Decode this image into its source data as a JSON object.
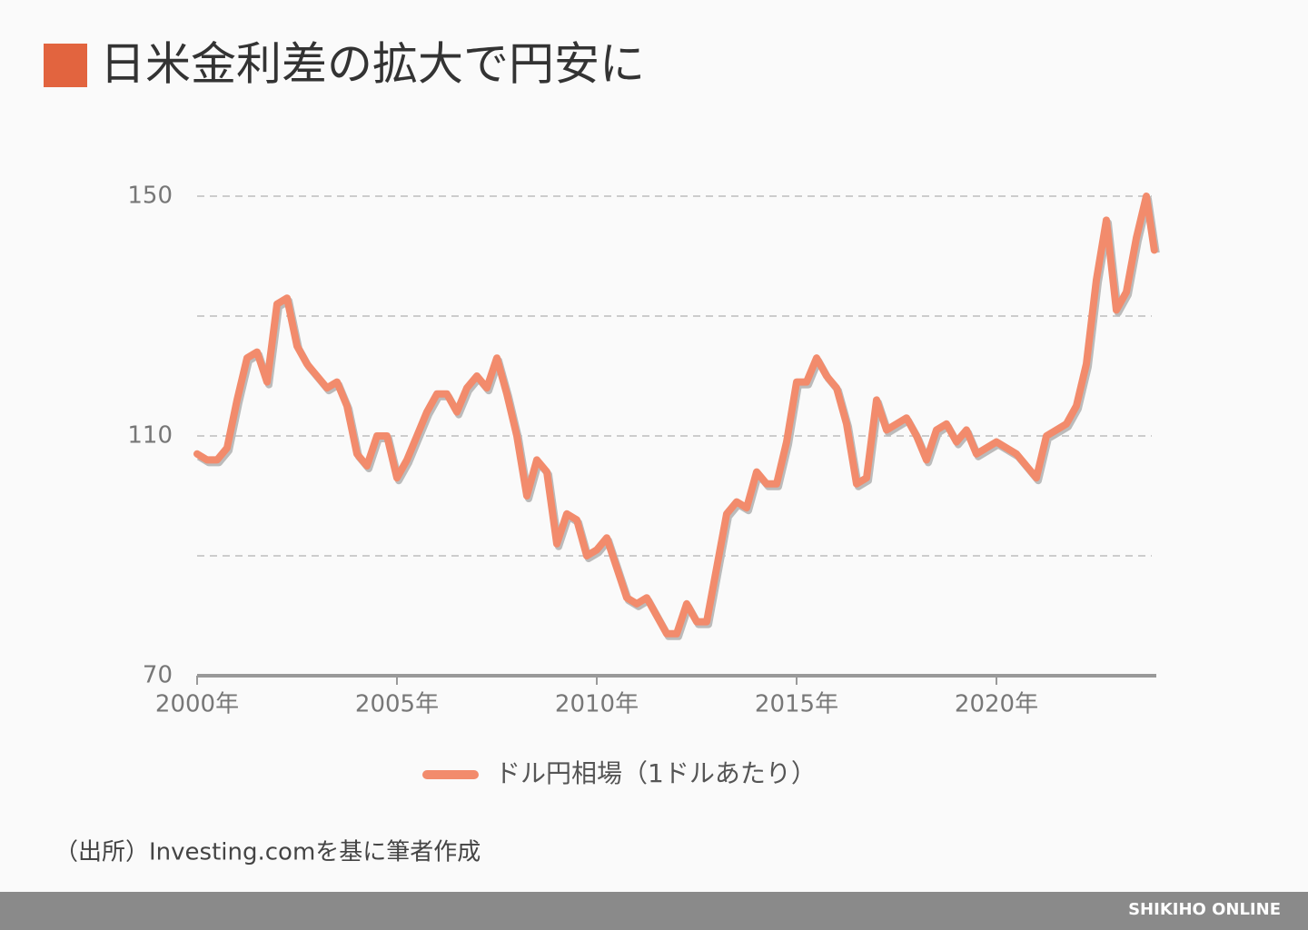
{
  "chart_data": {
    "type": "line",
    "title": "日米金利差の拡大で円安に",
    "source": "（出所）Investing.comを基に筆者作成",
    "brand": "SHIKIHO ONLINE",
    "x": [
      2000,
      2000.25,
      2000.5,
      2000.75,
      2001,
      2001.25,
      2001.5,
      2001.75,
      2002,
      2002.25,
      2002.5,
      2002.75,
      2003,
      2003.25,
      2003.5,
      2003.75,
      2004,
      2004.25,
      2004.5,
      2004.75,
      2005,
      2005.25,
      2005.5,
      2005.75,
      2006,
      2006.25,
      2006.5,
      2006.75,
      2007,
      2007.25,
      2007.5,
      2007.75,
      2008,
      2008.25,
      2008.5,
      2008.75,
      2009,
      2009.25,
      2009.5,
      2009.75,
      2010,
      2010.25,
      2010.5,
      2010.75,
      2011,
      2011.25,
      2011.5,
      2011.75,
      2012,
      2012.25,
      2012.5,
      2012.75,
      2013,
      2013.25,
      2013.5,
      2013.75,
      2014,
      2014.25,
      2014.5,
      2014.75,
      2015,
      2015.25,
      2015.5,
      2015.75,
      2016,
      2016.25,
      2016.5,
      2016.75,
      2017,
      2017.25,
      2017.5,
      2017.75,
      2018,
      2018.25,
      2018.5,
      2018.75,
      2019,
      2019.25,
      2019.5,
      2019.75,
      2020,
      2020.25,
      2020.5,
      2020.75,
      2021,
      2021.25,
      2021.5,
      2021.75,
      2022,
      2022.25,
      2022.5,
      2022.75,
      2023,
      2023.25,
      2023.5,
      2023.75,
      2023.95
    ],
    "series": [
      {
        "name": "ドル円相場（1ドルあたり）",
        "color": "#f28b6c",
        "values": [
          107,
          106,
          106,
          108,
          116,
          123,
          124,
          119,
          132,
          133,
          125,
          122,
          120,
          118,
          119,
          115,
          107,
          105,
          110,
          110,
          103,
          106,
          110,
          114,
          117,
          117,
          114,
          118,
          120,
          118,
          123,
          117,
          110,
          100,
          106,
          104,
          92,
          97,
          96,
          90,
          91,
          93,
          88,
          83,
          82,
          83,
          80,
          77,
          77,
          82,
          79,
          79,
          88,
          97,
          99,
          98,
          104,
          102,
          102,
          109,
          119,
          119,
          123,
          120,
          118,
          112,
          102,
          103,
          116,
          111,
          112,
          113,
          110,
          106,
          111,
          112,
          109,
          111,
          107,
          108,
          109,
          108,
          107,
          105,
          103,
          110,
          111,
          112,
          115,
          122,
          136,
          146,
          131,
          134,
          143,
          150,
          141
        ]
      }
    ],
    "xlim": [
      2000,
      2024
    ],
    "xticks": [
      {
        "value": 2000,
        "label": "2000年"
      },
      {
        "value": 2005,
        "label": "2005年"
      },
      {
        "value": 2010,
        "label": "2010年"
      },
      {
        "value": 2015,
        "label": "2015年"
      },
      {
        "value": 2020,
        "label": "2020年"
      }
    ],
    "ylim": [
      70,
      150
    ],
    "yticks": [
      70,
      {
        "value": 90,
        "label": null
      },
      110,
      {
        "value": 130,
        "label": null
      },
      150
    ],
    "grid": true
  }
}
